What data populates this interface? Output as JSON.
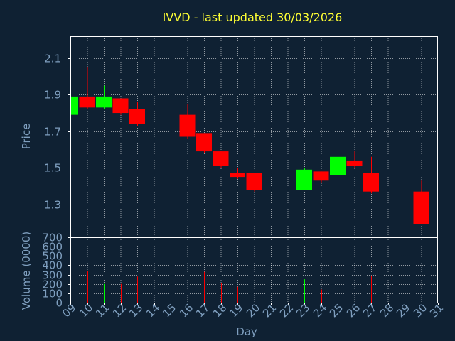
{
  "chart_data": [
    {
      "type": "candlestick",
      "title": "IVVD - last updated 30/03/2026",
      "xlabel": "Day",
      "ylabel": "Price",
      "x_ticks": [
        "09",
        "10",
        "11",
        "12",
        "13",
        "14",
        "15",
        "16",
        "17",
        "18",
        "19",
        "20",
        "21",
        "22",
        "23",
        "24",
        "25",
        "26",
        "27",
        "28",
        "29",
        "30",
        "31"
      ],
      "yticks": [
        1.3,
        1.5,
        1.7,
        1.9,
        2.1
      ],
      "ylim": [
        1.12,
        2.22
      ],
      "grid": true,
      "candles": [
        {
          "day": 9,
          "open": 1.79,
          "high": 1.89,
          "low": 1.79,
          "close": 1.89
        },
        {
          "day": 10,
          "open": 1.89,
          "high": 2.05,
          "low": 1.82,
          "close": 1.83
        },
        {
          "day": 11,
          "open": 1.83,
          "high": 1.95,
          "low": 1.82,
          "close": 1.89
        },
        {
          "day": 12,
          "open": 1.88,
          "high": 1.88,
          "low": 1.79,
          "close": 1.8
        },
        {
          "day": 13,
          "open": 1.82,
          "high": 1.86,
          "low": 1.73,
          "close": 1.74
        },
        {
          "day": 16,
          "open": 1.79,
          "high": 1.85,
          "low": 1.66,
          "close": 1.67
        },
        {
          "day": 17,
          "open": 1.69,
          "high": 1.69,
          "low": 1.58,
          "close": 1.59
        },
        {
          "day": 18,
          "open": 1.59,
          "high": 1.59,
          "low": 1.5,
          "close": 1.51
        },
        {
          "day": 19,
          "open": 1.47,
          "high": 1.5,
          "low": 1.44,
          "close": 1.45
        },
        {
          "day": 20,
          "open": 1.47,
          "high": 1.47,
          "low": 1.37,
          "close": 1.38
        },
        {
          "day": 23,
          "open": 1.38,
          "high": 1.5,
          "low": 1.38,
          "close": 1.49
        },
        {
          "day": 24,
          "open": 1.48,
          "high": 1.48,
          "low": 1.42,
          "close": 1.43
        },
        {
          "day": 25,
          "open": 1.46,
          "high": 1.59,
          "low": 1.45,
          "close": 1.56
        },
        {
          "day": 26,
          "open": 1.54,
          "high": 1.59,
          "low": 1.5,
          "close": 1.51
        },
        {
          "day": 27,
          "open": 1.47,
          "high": 1.56,
          "low": 1.36,
          "close": 1.37
        },
        {
          "day": 30,
          "open": 1.37,
          "high": 1.43,
          "low": 1.19,
          "close": 1.19
        }
      ]
    },
    {
      "type": "bar",
      "xlabel": "Day",
      "ylabel": "Volume (0000)",
      "yticks": [
        0,
        100,
        200,
        300,
        400,
        500,
        600,
        700
      ],
      "ylim": [
        0,
        700
      ],
      "grid": true,
      "bars": [
        {
          "day": 9,
          "value": 0,
          "color": "red"
        },
        {
          "day": 10,
          "value": 340,
          "color": "red"
        },
        {
          "day": 11,
          "value": 200,
          "color": "green"
        },
        {
          "day": 12,
          "value": 200,
          "color": "red"
        },
        {
          "day": 13,
          "value": 280,
          "color": "red"
        },
        {
          "day": 16,
          "value": 450,
          "color": "red"
        },
        {
          "day": 17,
          "value": 330,
          "color": "red"
        },
        {
          "day": 18,
          "value": 210,
          "color": "red"
        },
        {
          "day": 19,
          "value": 170,
          "color": "red"
        },
        {
          "day": 20,
          "value": 680,
          "color": "red"
        },
        {
          "day": 23,
          "value": 250,
          "color": "green"
        },
        {
          "day": 24,
          "value": 140,
          "color": "red"
        },
        {
          "day": 25,
          "value": 210,
          "color": "green"
        },
        {
          "day": 26,
          "value": 170,
          "color": "red"
        },
        {
          "day": 27,
          "value": 290,
          "color": "red"
        },
        {
          "day": 30,
          "value": 580,
          "color": "red"
        }
      ]
    }
  ],
  "colors": {
    "background": "#0f2133",
    "plot_border": "#ffffff",
    "grid": "#ffffff",
    "title": "#ffff33",
    "axis_text": "#7f9fbf",
    "up": "#00ff00",
    "down": "#ff0000",
    "tick_mark": "#ffffff"
  }
}
